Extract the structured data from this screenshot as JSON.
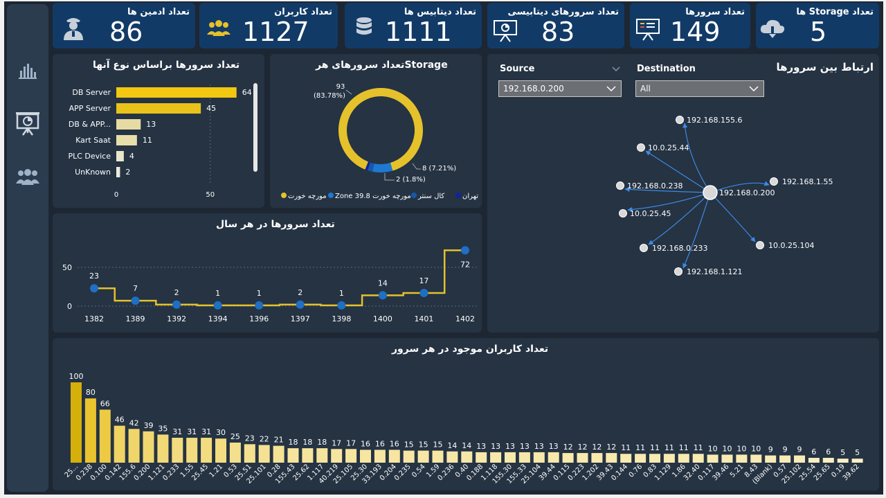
{
  "kpis": [
    {
      "title": "تعداد Storage ها",
      "value": "5",
      "icon": "cloud-download-icon"
    },
    {
      "title": "تعداد سرورها",
      "value": "149",
      "icon": "presentation-board-icon"
    },
    {
      "title": "تعداد سرورهای دیتابیسی",
      "value": "83",
      "icon": "presentation-chart-icon"
    },
    {
      "title": "تعداد دیتابیس ها",
      "value": "1111",
      "icon": "database-icon"
    },
    {
      "title": "تعداد کاربران",
      "value": "1127",
      "icon": "users-group-icon"
    },
    {
      "title": "تعداد ادمین ها",
      "value": "86",
      "icon": "admin-user-icon"
    }
  ],
  "sidebar": {
    "items": [
      {
        "name": "bar-chart-icon"
      },
      {
        "name": "presentation-chart-icon"
      },
      {
        "name": "users-group-icon"
      }
    ]
  },
  "server_types": {
    "title": "تعداد سرورها براساس نوع آنها",
    "chart_data": {
      "type": "bar",
      "orientation": "horizontal",
      "categories": [
        "DB Server",
        "APP Server",
        "DB & APP...",
        "Kart Saat",
        "PLC Device",
        "UnKnown"
      ],
      "values": [
        64,
        45,
        13,
        11,
        4,
        2
      ],
      "xticks": [
        "0",
        "50"
      ],
      "xlim": [
        0,
        70
      ],
      "colors": [
        "#f2c811",
        "#e9c21a",
        "#e6dba3",
        "#e8deaa",
        "#e9e6cc",
        "#eceadf"
      ]
    }
  },
  "storage": {
    "title": "تعداد سرورهای هرStorage",
    "chart_data": {
      "type": "pie",
      "donut": true,
      "slices": [
        {
          "name": "مورچه خورت",
          "value": 93,
          "label": "93",
          "pct_label": "(83.78%)",
          "color": "#e5c12c"
        },
        {
          "name": "Zone 39.8 مورچه خورت",
          "value": 8,
          "label": "8 (7.21%)",
          "color": "#1f78d1"
        },
        {
          "name": "کال سنتر",
          "value": 2,
          "label": "2 (1.8%)",
          "color": "#1559a8"
        },
        {
          "name": "تهران",
          "value": 1,
          "label": "",
          "color": "#12239e"
        }
      ],
      "legend": [
        {
          "name": "مورچه خورت",
          "color": "#e5c12c"
        },
        {
          "name": "Zone 39.8 مورچه خورت",
          "color": "#1f78d1"
        },
        {
          "name": "کال سنتر",
          "color": "#1559a8"
        },
        {
          "name": "تهران",
          "color": "#12239e"
        }
      ]
    }
  },
  "network": {
    "title": "ارتباط بین سرورها",
    "source_label": "Source",
    "source_value": "192.168.0.200",
    "destination_label": "Destination",
    "destination_value": "All",
    "center": "192.168.0.200",
    "nodes": [
      "192.168.155.6",
      "10.0.25.44",
      "192.168.1.55",
      "192.168.0.238",
      "10.0.25.45",
      "10.0.25.104",
      "192.168.0.233",
      "192.168.1.121"
    ]
  },
  "yearly": {
    "title": "تعداد سرورها در هر سال",
    "chart_data": {
      "type": "line",
      "x": [
        "1382",
        "1389",
        "1392",
        "1394",
        "1396",
        "1397",
        "1398",
        "1400",
        "1401",
        "1402"
      ],
      "values": [
        23,
        7,
        2,
        1,
        1,
        2,
        1,
        14,
        17,
        72
      ],
      "yticks": [
        "0",
        "50"
      ],
      "ylim": [
        0,
        80
      ],
      "line_color": "#e5c12c",
      "marker_color": "#1f6fc4"
    }
  },
  "users_per_server": {
    "title": "تعداد کاربران موجود در هر سرور",
    "chart_data": {
      "type": "bar",
      "categories": [
        "25...",
        "0.238",
        "0.100",
        "0.142",
        "155.6",
        "0.200",
        "1.121",
        "0.233",
        "1.55",
        "25.45",
        "1.21",
        "0.53",
        "25.51",
        "25.101",
        "0.28",
        "155.43",
        "25.62",
        "1.117",
        "40.219",
        "25.105",
        "25.30",
        "33.193",
        "0.204",
        "0.235",
        "0.54",
        "1.59",
        "0.236",
        "0.40",
        "0.188",
        "1.118",
        "155.30",
        "155.33",
        "25.104",
        "39.44",
        "0.115",
        "0.223",
        "1.202",
        "39.43",
        "0.144",
        "0.76",
        "0.83",
        "1.129",
        "1.86",
        "32.40",
        "0.117",
        "39.46",
        "5.21",
        "8.43",
        "(Blank)",
        "0.57",
        "25.102",
        "25.54",
        "25.65",
        "0.19",
        "39.62"
      ],
      "values": [
        100,
        80,
        66,
        46,
        42,
        39,
        35,
        31,
        31,
        31,
        30,
        25,
        23,
        22,
        21,
        18,
        18,
        18,
        17,
        17,
        16,
        16,
        16,
        15,
        15,
        15,
        14,
        14,
        13,
        13,
        13,
        13,
        13,
        13,
        12,
        12,
        12,
        12,
        11,
        11,
        11,
        11,
        11,
        11,
        10,
        10,
        10,
        10,
        9,
        9,
        9,
        6,
        6,
        5,
        5
      ],
      "ylim": [
        0,
        105
      ]
    }
  }
}
